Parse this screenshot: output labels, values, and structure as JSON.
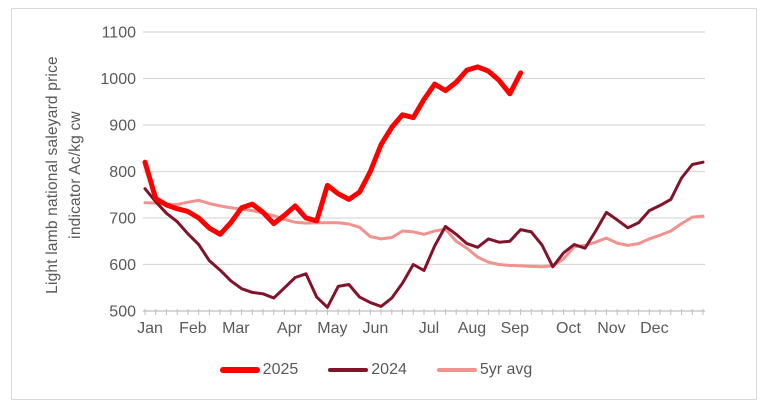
{
  "chart_data": {
    "type": "line",
    "title": "",
    "ylabel_line1": "Light lamb national saleyard price",
    "ylabel_line2": "indicator Ac/kg cw",
    "y_axis": {
      "min": 500,
      "max": 1100,
      "step": 100,
      "tick_labels": [
        "500",
        "600",
        "700",
        "800",
        "900",
        "1000",
        "1100"
      ]
    },
    "x_axis": {
      "weeks_total": 52,
      "months": [
        {
          "label": "Jan",
          "week": 0
        },
        {
          "label": "Feb",
          "week": 4
        },
        {
          "label": "Mar",
          "week": 8
        },
        {
          "label": "Apr",
          "week": 13
        },
        {
          "label": "May",
          "week": 17
        },
        {
          "label": "Jun",
          "week": 21
        },
        {
          "label": "Jul",
          "week": 26
        },
        {
          "label": "Aug",
          "week": 30
        },
        {
          "label": "Sep",
          "week": 34
        },
        {
          "label": "Oct",
          "week": 39
        },
        {
          "label": "Nov",
          "week": 43
        },
        {
          "label": "Dec",
          "week": 47
        }
      ]
    },
    "legend_position": "bottom",
    "grid": "horizontal",
    "series": [
      {
        "name": "2025",
        "color": "#ff0000",
        "line_width": 5,
        "start_week": 0,
        "values": [
          820,
          742,
          728,
          720,
          714,
          700,
          678,
          665,
          690,
          722,
          730,
          712,
          688,
          706,
          726,
          700,
          694,
          770,
          752,
          740,
          756,
          800,
          858,
          895,
          922,
          916,
          955,
          988,
          974,
          992,
          1018,
          1025,
          1016,
          996,
          967,
          1012
        ]
      },
      {
        "name": "2024",
        "color": "#82132a",
        "line_width": 3,
        "start_week": 0,
        "values": [
          763,
          735,
          710,
          692,
          666,
          643,
          608,
          588,
          565,
          548,
          540,
          537,
          528,
          550,
          572,
          580,
          530,
          508,
          553,
          557,
          530,
          518,
          510,
          528,
          560,
          600,
          587,
          640,
          682,
          665,
          645,
          637,
          655,
          648,
          650,
          675,
          670,
          642,
          595,
          625,
          643,
          635,
          672,
          712,
          696,
          679,
          690,
          716,
          727,
          740,
          786,
          815,
          820
        ]
      },
      {
        "name": "5yr avg",
        "color": "#f1928e",
        "line_width": 3,
        "start_week": 0,
        "values": [
          733,
          732,
          730,
          729,
          734,
          738,
          731,
          726,
          722,
          719,
          716,
          711,
          705,
          697,
          691,
          689,
          690,
          690,
          690,
          687,
          680,
          660,
          655,
          658,
          672,
          670,
          665,
          672,
          676,
          650,
          635,
          616,
          605,
          600,
          598,
          597,
          596,
          595,
          597,
          612,
          638,
          641,
          648,
          657,
          646,
          641,
          645,
          655,
          663,
          672,
          688,
          702,
          704
        ]
      }
    ],
    "colors": {
      "gridline": "#d9d9d9",
      "axis_line": "#bfbfbf",
      "axis_text": "#595959"
    }
  }
}
